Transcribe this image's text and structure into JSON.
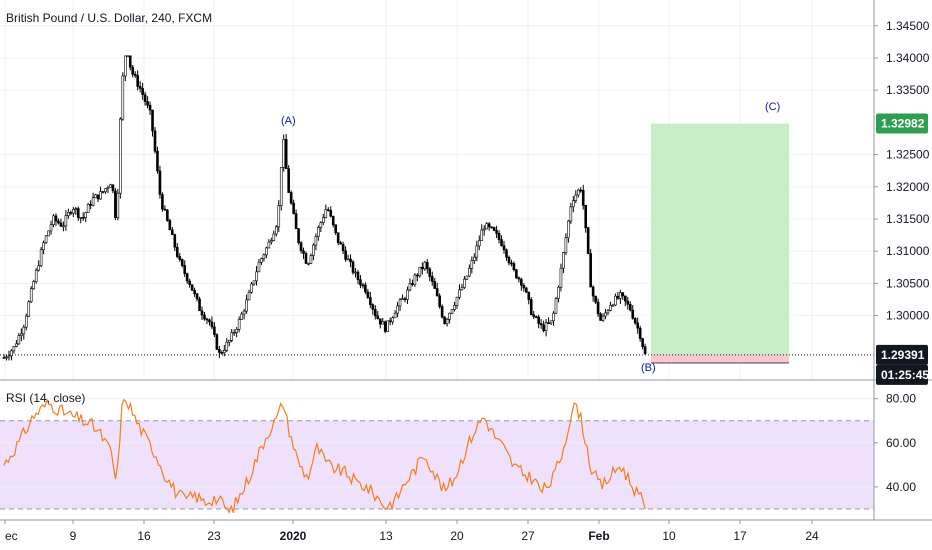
{
  "legend": {
    "symbol_text": "British Pound / U.S. Dollar, 240, FXCM"
  },
  "rsi_legend": "RSI (14, close)",
  "colors": {
    "up_candle": "#ffffff",
    "down_candle": "#000000",
    "candle_outline": "#000000",
    "rsi_line": "#f57c1f",
    "rsi_band": "#efe1fb",
    "target_zone": "#c8eec8",
    "stop_zone": "#f8c9ce",
    "target_badge": "#2e9e4f",
    "price_badge": "#131722",
    "wave_label": "#0b18a8"
  },
  "chart_data": [
    {
      "type": "candlestick",
      "title": "British Pound / U.S. Dollar, 240, FXCM",
      "x_ticks": [
        "ec",
        "9",
        "16",
        "23",
        "2020",
        "13",
        "20",
        "27",
        "Feb",
        "10",
        "17",
        "24"
      ],
      "bold_ticks": [
        "2020",
        "Feb"
      ],
      "y_ticks": [
        "1.34500",
        "1.34000",
        "1.33500",
        "1.32500",
        "1.32000",
        "1.31500",
        "1.31000",
        "1.30500",
        "1.30000"
      ],
      "ylim": [
        1.29,
        1.349
      ],
      "price_path": [
        [
          0,
          1.2935
        ],
        [
          2,
          1.295
        ],
        [
          4,
          1.2985
        ],
        [
          6,
          1.305
        ],
        [
          8,
          1.311
        ],
        [
          10,
          1.315
        ],
        [
          12,
          1.314
        ],
        [
          14,
          1.317
        ],
        [
          16,
          1.315
        ],
        [
          18,
          1.318
        ],
        [
          20,
          1.319
        ],
        [
          22,
          1.321
        ],
        [
          23,
          1.314
        ],
        [
          24,
          1.335
        ],
        [
          25,
          1.342
        ],
        [
          26,
          1.338
        ],
        [
          28,
          1.335
        ],
        [
          30,
          1.331
        ],
        [
          32,
          1.318
        ],
        [
          34,
          1.313
        ],
        [
          36,
          1.308
        ],
        [
          38,
          1.305
        ],
        [
          40,
          1.301
        ],
        [
          42,
          1.299
        ],
        [
          44,
          1.294
        ],
        [
          46,
          1.296
        ],
        [
          48,
          1.299
        ],
        [
          50,
          1.303
        ],
        [
          52,
          1.308
        ],
        [
          54,
          1.311
        ],
        [
          56,
          1.315
        ],
        [
          57,
          1.328
        ],
        [
          58,
          1.32
        ],
        [
          60,
          1.312
        ],
        [
          62,
          1.308
        ],
        [
          64,
          1.313
        ],
        [
          66,
          1.317
        ],
        [
          68,
          1.312
        ],
        [
          70,
          1.309
        ],
        [
          72,
          1.306
        ],
        [
          74,
          1.304
        ],
        [
          76,
          1.3
        ],
        [
          78,
          1.298
        ],
        [
          80,
          1.301
        ],
        [
          82,
          1.303
        ],
        [
          84,
          1.306
        ],
        [
          86,
          1.308
        ],
        [
          88,
          1.304
        ],
        [
          90,
          1.299
        ],
        [
          92,
          1.302
        ],
        [
          94,
          1.305
        ],
        [
          96,
          1.309
        ],
        [
          98,
          1.314
        ],
        [
          100,
          1.313
        ],
        [
          102,
          1.311
        ],
        [
          104,
          1.307
        ],
        [
          106,
          1.305
        ],
        [
          108,
          1.3
        ],
        [
          110,
          1.298
        ],
        [
          112,
          1.299
        ],
        [
          114,
          1.308
        ],
        [
          116,
          1.318
        ],
        [
          118,
          1.32
        ],
        [
          119,
          1.312
        ],
        [
          120,
          1.304
        ],
        [
          122,
          1.299
        ],
        [
          124,
          1.302
        ],
        [
          126,
          1.303
        ],
        [
          128,
          1.301
        ],
        [
          130,
          1.297
        ],
        [
          131,
          1.2939
        ]
      ],
      "last_price": "1.29391",
      "target_price": "1.32982",
      "countdown": "01:25:45",
      "wave_labels": [
        "(A)",
        "(B)",
        "(C)"
      ],
      "position": {
        "type": "long",
        "entry": 1.2939,
        "target": 1.3298,
        "stop": 1.2925
      }
    },
    {
      "type": "line",
      "title": "RSI (14, close)",
      "y_ticks": [
        "80.00",
        "60.00",
        "40.00"
      ],
      "ylim": [
        25,
        88
      ],
      "band": [
        30,
        70
      ],
      "series": [
        {
          "values": [
            [
              0,
              50
            ],
            [
              3,
              60
            ],
            [
              6,
              72
            ],
            [
              9,
              78
            ],
            [
              12,
              74
            ],
            [
              15,
              71
            ],
            [
              18,
              68
            ],
            [
              20,
              63
            ],
            [
              22,
              55
            ],
            [
              23,
              40
            ],
            [
              24,
              75
            ],
            [
              25,
              80
            ],
            [
              27,
              70
            ],
            [
              29,
              62
            ],
            [
              31,
              55
            ],
            [
              33,
              45
            ],
            [
              35,
              38
            ],
            [
              37,
              34
            ],
            [
              39,
              36
            ],
            [
              41,
              33
            ],
            [
              43,
              35
            ],
            [
              45,
              32
            ],
            [
              46,
              28
            ],
            [
              48,
              35
            ],
            [
              50,
              44
            ],
            [
              52,
              55
            ],
            [
              54,
              65
            ],
            [
              56,
              72
            ],
            [
              57,
              79
            ],
            [
              58,
              68
            ],
            [
              60,
              52
            ],
            [
              62,
              44
            ],
            [
              64,
              58
            ],
            [
              66,
              50
            ],
            [
              68,
              48
            ],
            [
              70,
              46
            ],
            [
              72,
              42
            ],
            [
              74,
              40
            ],
            [
              76,
              36
            ],
            [
              78,
              31
            ],
            [
              80,
              34
            ],
            [
              82,
              42
            ],
            [
              84,
              48
            ],
            [
              86,
              55
            ],
            [
              88,
              46
            ],
            [
              90,
              38
            ],
            [
              92,
              44
            ],
            [
              94,
              55
            ],
            [
              96,
              65
            ],
            [
              98,
              72
            ],
            [
              100,
              64
            ],
            [
              102,
              58
            ],
            [
              104,
              50
            ],
            [
              106,
              46
            ],
            [
              108,
              44
            ],
            [
              110,
              38
            ],
            [
              112,
              43
            ],
            [
              114,
              55
            ],
            [
              116,
              74
            ],
            [
              117,
              77
            ],
            [
              118,
              70
            ],
            [
              120,
              48
            ],
            [
              122,
              40
            ],
            [
              124,
              45
            ],
            [
              126,
              50
            ],
            [
              128,
              42
            ],
            [
              130,
              35
            ],
            [
              131,
              31
            ]
          ]
        }
      ]
    }
  ]
}
